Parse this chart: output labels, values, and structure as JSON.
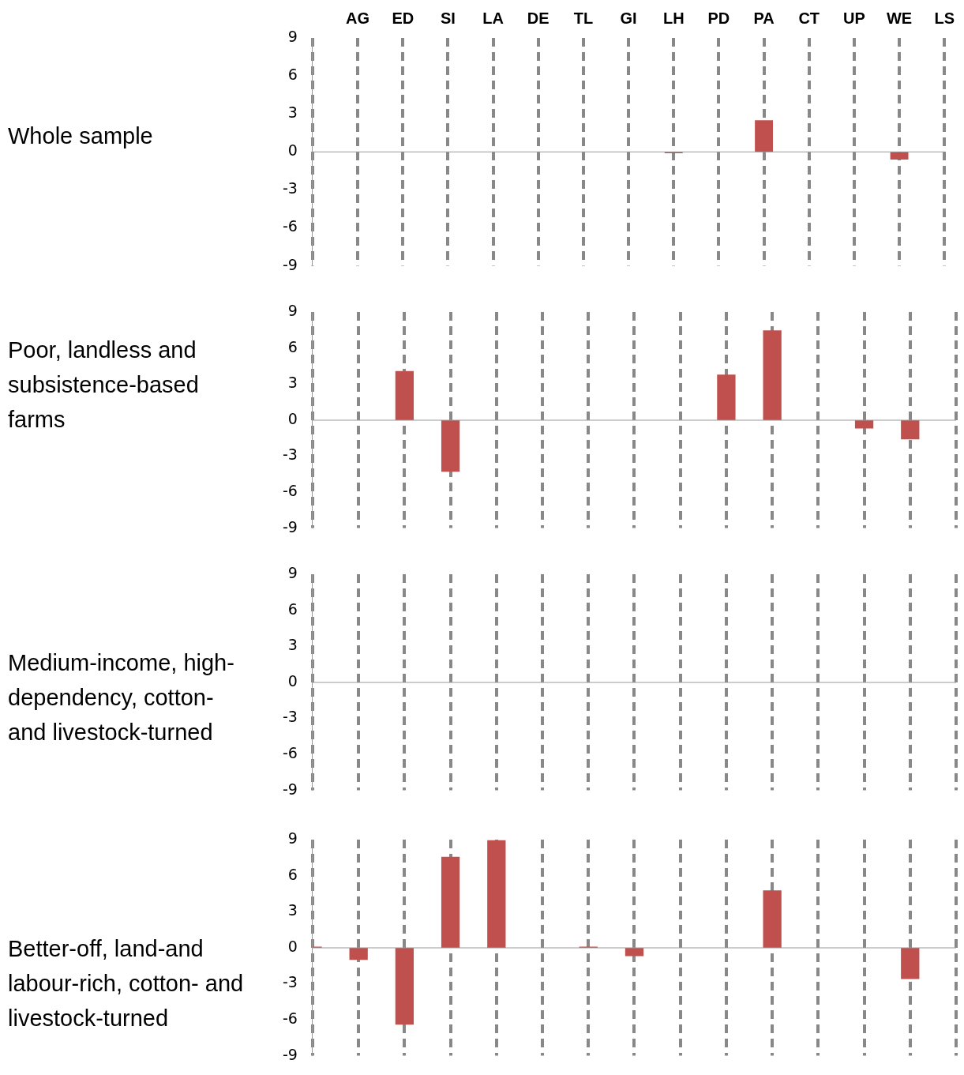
{
  "chart_data": [
    {
      "type": "bar",
      "title": "Whole sample",
      "categories": [
        null,
        "AG",
        "ED",
        "SI",
        "LA",
        "DE",
        "TL",
        "GI",
        "LH",
        "PD",
        "PA",
        "CT",
        "UP",
        "WE",
        "LS"
      ],
      "values": [
        null,
        null,
        null,
        null,
        null,
        null,
        null,
        null,
        -0.1,
        null,
        2.5,
        null,
        null,
        -0.6,
        null
      ],
      "color": "#c0504d",
      "ylim": [
        -9,
        9
      ],
      "yticks": [
        -9,
        -6,
        -3,
        0,
        3,
        6,
        9
      ],
      "grid": "x"
    },
    {
      "type": "bar",
      "title": "Poor, landless and subsistence-based farms",
      "categories": [
        null,
        null,
        null,
        null,
        null,
        null,
        null,
        null,
        null,
        null,
        null,
        null,
        null,
        null,
        null
      ],
      "values": [
        null,
        null,
        4.1,
        -4.3,
        null,
        null,
        null,
        null,
        null,
        3.8,
        7.5,
        null,
        -0.7,
        -1.6,
        null
      ],
      "color": "#c0504d",
      "ylim": [
        -9,
        9
      ],
      "yticks": [
        -9,
        -6,
        -3,
        0,
        3,
        6,
        9
      ],
      "grid": "x",
      "tick_labels": "y"
    },
    {
      "type": "bar",
      "title": "Medium-income, high-dependency, cotton-and livestock-turned",
      "categories": [
        null,
        null,
        null,
        null,
        null,
        null,
        null,
        null,
        null,
        null,
        null,
        null,
        null,
        null,
        null
      ],
      "values": [
        null,
        null,
        null,
        null,
        null,
        null,
        null,
        null,
        null,
        null,
        null,
        null,
        null,
        null,
        null
      ],
      "color": "#c0504d",
      "ylim": [
        -9,
        9
      ],
      "yticks": [
        -9,
        -6,
        -3,
        0,
        3,
        6,
        9
      ],
      "grid": "x",
      "tick_labels": "y"
    },
    {
      "type": "bar",
      "title": "Better-off, land-and labour-rich, cotton- and livestock-turned",
      "categories": [
        null,
        null,
        null,
        null,
        null,
        null,
        null,
        null,
        null,
        null,
        null,
        null,
        null,
        null,
        null
      ],
      "values": [
        0.1,
        -1.0,
        -6.4,
        7.6,
        9.0,
        null,
        0.1,
        -0.7,
        null,
        null,
        4.8,
        null,
        null,
        -2.6,
        null
      ],
      "color": "#c0504d",
      "ylim": [
        -9,
        9
      ],
      "yticks": [
        -9,
        -6,
        -3,
        0,
        3,
        6,
        9
      ],
      "grid": "x",
      "tick_labels": "y"
    }
  ]
}
